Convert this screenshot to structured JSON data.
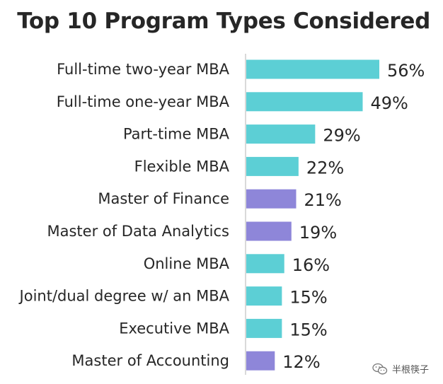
{
  "chart_data": {
    "type": "bar",
    "orientation": "horizontal",
    "title": "Top 10 Program Types Considered",
    "categories": [
      "Full-time two-year MBA",
      "Full-time one-year MBA",
      "Part-time MBA",
      "Flexible MBA",
      "Master of Finance",
      "Master of Data Analytics",
      "Online MBA",
      "Joint/dual degree w/ an MBA",
      "Executive MBA",
      "Master of Accounting"
    ],
    "values": [
      56,
      49,
      29,
      22,
      21,
      19,
      16,
      15,
      15,
      12
    ],
    "value_labels": [
      "56%",
      "49%",
      "29%",
      "22%",
      "21%",
      "19%",
      "16%",
      "15%",
      "15%",
      "12%"
    ],
    "bar_group": [
      "mba",
      "mba",
      "mba",
      "mba",
      "master",
      "master",
      "mba",
      "mba",
      "mba",
      "master"
    ],
    "unit": "%",
    "xlim": [
      0,
      56
    ],
    "grid": false,
    "legend": "none"
  },
  "colors": {
    "mba": "#5ccfd5",
    "master": "#8e86d9",
    "axis_line": "#d9d9d9",
    "text": "#262626"
  },
  "watermark": {
    "text": "半根筷子",
    "icon": "wechat-icon"
  }
}
